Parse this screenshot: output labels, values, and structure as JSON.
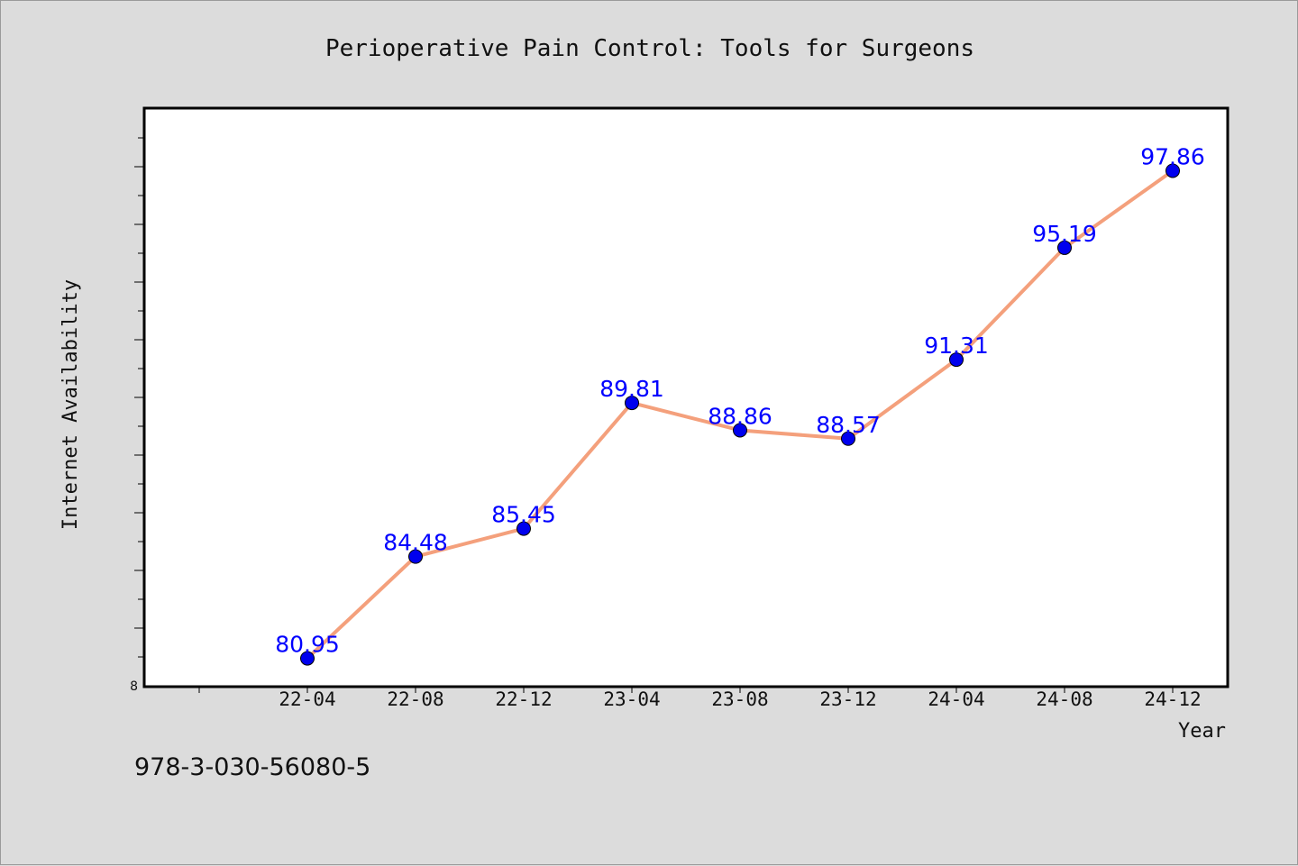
{
  "chart_data": {
    "type": "line",
    "title": "Perioperative Pain Control: Tools for Surgeons",
    "xlabel": "Year",
    "ylabel": "Internet Availability",
    "categories": [
      "22-04",
      "22-08",
      "22-12",
      "23-04",
      "23-08",
      "23-12",
      "24-04",
      "24-08",
      "24-12"
    ],
    "series": [
      {
        "values": [
          80.95,
          84.48,
          85.45,
          89.81,
          88.86,
          88.57,
          91.31,
          95.19,
          97.86
        ]
      }
    ],
    "ylim": [
      80,
      100
    ],
    "y_tick_label": "8",
    "grid": false,
    "legend": "none",
    "colors": {
      "line": "#f4a07c",
      "marker": "#0000ee",
      "data_label": "#0000ff",
      "background": "#dcdcdc",
      "plot_background": "#ffffff"
    }
  },
  "caption": "978-3-030-56080-5"
}
